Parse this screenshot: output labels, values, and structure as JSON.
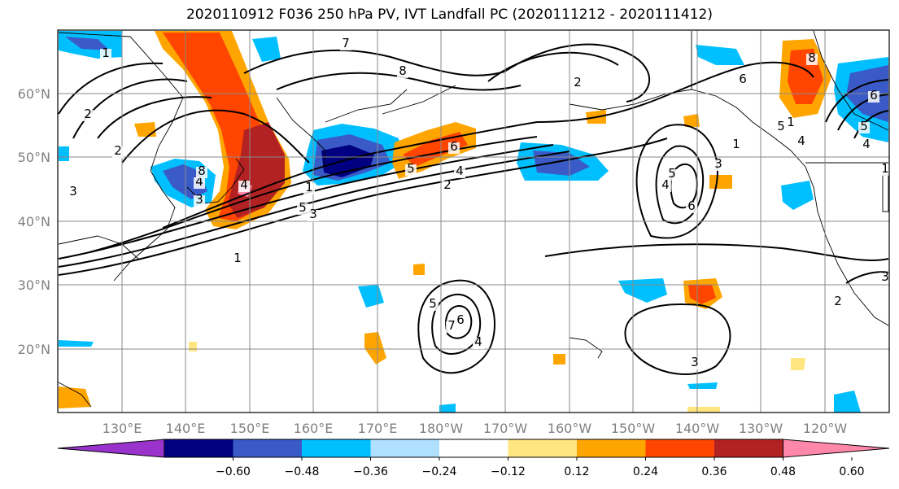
{
  "title": "2020110912 F036 250 hPa PV, IVT Landfall PC (2020111212 - 2020111412)",
  "map": {
    "lat_labels": [
      "60°N",
      "50°N",
      "40°N",
      "30°N",
      "20°N"
    ],
    "lon_labels": [
      "130°E",
      "140°E",
      "150°E",
      "160°E",
      "170°E",
      "180°W",
      "170°W",
      "160°W",
      "150°W",
      "140°W",
      "130°W",
      "120°W"
    ],
    "axis_label_color": "#808080"
  },
  "contour_labels": [
    "7",
    "8",
    "2",
    "1",
    "2",
    "5",
    "4",
    "2",
    "1",
    "3",
    "6",
    "5",
    "4",
    "3",
    "2",
    "1",
    "4",
    "6",
    "5",
    "4",
    "3",
    "1",
    "2",
    "3",
    "4",
    "5",
    "6",
    "7",
    "8",
    "1",
    "3",
    "4",
    "5",
    "6",
    "1",
    "3",
    "8",
    "6",
    "5",
    "4"
  ],
  "colorbar": {
    "ticks": [
      "−0.60",
      "−0.48",
      "−0.36",
      "−0.24",
      "−0.12",
      "0.12",
      "0.24",
      "0.36",
      "0.48",
      "0.60"
    ],
    "colors": {
      "under": "#9933cc",
      "b1": "#000080",
      "b2": "#3a5bc7",
      "b3": "#00bfff",
      "b4": "#b0e0ff",
      "b5": "#ffffff",
      "b6": "#ffe680",
      "b7": "#ffa500",
      "b8": "#ff4500",
      "b9": "#b22222",
      "over": "#ff88aa"
    }
  }
}
